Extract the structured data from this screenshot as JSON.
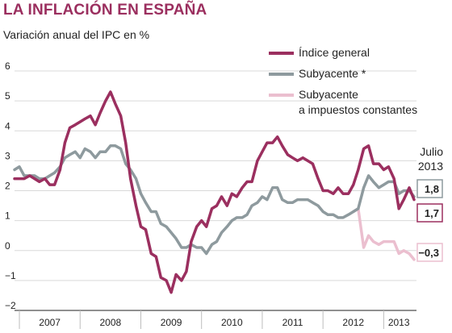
{
  "header": {
    "title": "LA INFLACIÓN EN ESPAÑA",
    "subtitle": "Variación anual del IPC en %"
  },
  "colors": {
    "general": "#9b2f5f",
    "subyacente": "#8e9a9e",
    "constantes": "#ebbfcf",
    "title": "#9b2f5f"
  },
  "annotation": {
    "month": "Julio",
    "year": "2013"
  },
  "chart_data": {
    "type": "line",
    "title": "LA INFLACIÓN EN ESPAÑA",
    "subtitle": "Variación anual del IPC en %",
    "xlabel": "",
    "ylabel": "",
    "ylim": [
      -2,
      6
    ],
    "yticks": [
      "6",
      "5",
      "4",
      "3",
      "2",
      "1",
      "0",
      "-1",
      "-2"
    ],
    "yticks_values": [
      6,
      5,
      4,
      3,
      2,
      1,
      0,
      -1,
      -2
    ],
    "xticks": [
      "2007",
      "2008",
      "2009",
      "2010",
      "2011",
      "2012",
      "2013"
    ],
    "xticks_center_years": [
      2007.5,
      2008.5,
      2009.5,
      2010.5,
      2011.5,
      2012.5,
      2013.25
    ],
    "year_separators": [
      2007,
      2008,
      2009,
      2010,
      2011,
      2012,
      2013
    ],
    "xrange": [
      2006.92,
      2013.54
    ],
    "grid": true,
    "legend_position": "top-right",
    "series": [
      {
        "name": "Índice general",
        "color_key": "general",
        "end_label": "1,7",
        "points": [
          [
            2006.92,
            2.4
          ],
          [
            2007.0,
            2.4
          ],
          [
            2007.08,
            2.4
          ],
          [
            2007.17,
            2.5
          ],
          [
            2007.25,
            2.4
          ],
          [
            2007.33,
            2.3
          ],
          [
            2007.42,
            2.4
          ],
          [
            2007.5,
            2.2
          ],
          [
            2007.58,
            2.2
          ],
          [
            2007.67,
            2.7
          ],
          [
            2007.75,
            3.6
          ],
          [
            2007.83,
            4.1
          ],
          [
            2007.92,
            4.2
          ],
          [
            2008.0,
            4.3
          ],
          [
            2008.08,
            4.4
          ],
          [
            2008.17,
            4.5
          ],
          [
            2008.25,
            4.2
          ],
          [
            2008.33,
            4.6
          ],
          [
            2008.42,
            5.0
          ],
          [
            2008.5,
            5.3
          ],
          [
            2008.58,
            4.9
          ],
          [
            2008.67,
            4.5
          ],
          [
            2008.75,
            3.6
          ],
          [
            2008.83,
            2.4
          ],
          [
            2008.92,
            1.5
          ],
          [
            2009.0,
            0.8
          ],
          [
            2009.08,
            0.7
          ],
          [
            2009.17,
            -0.1
          ],
          [
            2009.25,
            -0.2
          ],
          [
            2009.33,
            -0.9
          ],
          [
            2009.42,
            -1.0
          ],
          [
            2009.5,
            -1.4
          ],
          [
            2009.58,
            -0.8
          ],
          [
            2009.67,
            -1.0
          ],
          [
            2009.75,
            -0.7
          ],
          [
            2009.83,
            0.3
          ],
          [
            2009.92,
            0.8
          ],
          [
            2010.0,
            1.0
          ],
          [
            2010.08,
            0.8
          ],
          [
            2010.17,
            1.4
          ],
          [
            2010.25,
            1.5
          ],
          [
            2010.33,
            1.8
          ],
          [
            2010.42,
            1.5
          ],
          [
            2010.5,
            1.9
          ],
          [
            2010.58,
            1.8
          ],
          [
            2010.67,
            2.1
          ],
          [
            2010.75,
            2.3
          ],
          [
            2010.83,
            2.3
          ],
          [
            2010.92,
            3.0
          ],
          [
            2011.0,
            3.3
          ],
          [
            2011.08,
            3.6
          ],
          [
            2011.17,
            3.6
          ],
          [
            2011.25,
            3.8
          ],
          [
            2011.33,
            3.5
          ],
          [
            2011.42,
            3.2
          ],
          [
            2011.5,
            3.1
          ],
          [
            2011.58,
            3.0
          ],
          [
            2011.67,
            3.1
          ],
          [
            2011.75,
            3.0
          ],
          [
            2011.83,
            2.9
          ],
          [
            2011.92,
            2.4
          ],
          [
            2012.0,
            2.0
          ],
          [
            2012.08,
            2.0
          ],
          [
            2012.17,
            1.9
          ],
          [
            2012.25,
            2.1
          ],
          [
            2012.33,
            1.9
          ],
          [
            2012.42,
            1.9
          ],
          [
            2012.5,
            2.2
          ],
          [
            2012.58,
            2.7
          ],
          [
            2012.67,
            3.4
          ],
          [
            2012.75,
            3.5
          ],
          [
            2012.83,
            2.9
          ],
          [
            2012.92,
            2.9
          ],
          [
            2013.0,
            2.7
          ],
          [
            2013.08,
            2.8
          ],
          [
            2013.17,
            2.4
          ],
          [
            2013.25,
            1.4
          ],
          [
            2013.33,
            1.7
          ],
          [
            2013.42,
            2.1
          ],
          [
            2013.5,
            1.7
          ]
        ]
      },
      {
        "name": "Subyacente *",
        "color_key": "subyacente",
        "end_label": "1,8",
        "points": [
          [
            2006.92,
            2.7
          ],
          [
            2007.0,
            2.8
          ],
          [
            2007.08,
            2.5
          ],
          [
            2007.17,
            2.5
          ],
          [
            2007.25,
            2.5
          ],
          [
            2007.33,
            2.4
          ],
          [
            2007.42,
            2.4
          ],
          [
            2007.5,
            2.5
          ],
          [
            2007.58,
            2.6
          ],
          [
            2007.67,
            2.8
          ],
          [
            2007.75,
            3.1
          ],
          [
            2007.83,
            3.2
          ],
          [
            2007.92,
            3.3
          ],
          [
            2008.0,
            3.1
          ],
          [
            2008.08,
            3.4
          ],
          [
            2008.17,
            3.3
          ],
          [
            2008.25,
            3.1
          ],
          [
            2008.33,
            3.3
          ],
          [
            2008.42,
            3.3
          ],
          [
            2008.5,
            3.5
          ],
          [
            2008.58,
            3.5
          ],
          [
            2008.67,
            3.4
          ],
          [
            2008.75,
            2.9
          ],
          [
            2008.83,
            2.7
          ],
          [
            2008.92,
            2.4
          ],
          [
            2009.0,
            1.9
          ],
          [
            2009.08,
            1.6
          ],
          [
            2009.17,
            1.3
          ],
          [
            2009.25,
            1.3
          ],
          [
            2009.33,
            0.9
          ],
          [
            2009.42,
            0.8
          ],
          [
            2009.5,
            0.6
          ],
          [
            2009.58,
            0.4
          ],
          [
            2009.67,
            0.1
          ],
          [
            2009.75,
            0.1
          ],
          [
            2009.83,
            0.2
          ],
          [
            2009.92,
            0.1
          ],
          [
            2010.0,
            0.1
          ],
          [
            2010.08,
            -0.1
          ],
          [
            2010.17,
            0.2
          ],
          [
            2010.25,
            0.3
          ],
          [
            2010.33,
            0.6
          ],
          [
            2010.42,
            0.8
          ],
          [
            2010.5,
            1.0
          ],
          [
            2010.58,
            1.1
          ],
          [
            2010.67,
            1.1
          ],
          [
            2010.75,
            1.2
          ],
          [
            2010.83,
            1.5
          ],
          [
            2010.92,
            1.6
          ],
          [
            2011.0,
            1.8
          ],
          [
            2011.08,
            1.7
          ],
          [
            2011.17,
            2.1
          ],
          [
            2011.25,
            2.1
          ],
          [
            2011.33,
            1.7
          ],
          [
            2011.42,
            1.6
          ],
          [
            2011.5,
            1.6
          ],
          [
            2011.58,
            1.7
          ],
          [
            2011.67,
            1.7
          ],
          [
            2011.75,
            1.7
          ],
          [
            2011.83,
            1.6
          ],
          [
            2011.92,
            1.5
          ],
          [
            2012.0,
            1.3
          ],
          [
            2012.08,
            1.2
          ],
          [
            2012.17,
            1.2
          ],
          [
            2012.25,
            1.1
          ],
          [
            2012.33,
            1.1
          ],
          [
            2012.42,
            1.2
          ],
          [
            2012.5,
            1.3
          ],
          [
            2012.58,
            1.4
          ],
          [
            2012.67,
            2.1
          ],
          [
            2012.75,
            2.5
          ],
          [
            2012.83,
            2.3
          ],
          [
            2012.92,
            2.1
          ],
          [
            2013.0,
            2.2
          ],
          [
            2013.08,
            2.3
          ],
          [
            2013.17,
            2.3
          ],
          [
            2013.25,
            1.9
          ],
          [
            2013.33,
            2.0
          ],
          [
            2013.42,
            2.0
          ],
          [
            2013.5,
            1.8
          ]
        ]
      },
      {
        "name": "Subyacente a impuestos constantes",
        "legend_lines": [
          "Subyacente",
          "a impuestos constantes"
        ],
        "color_key": "constantes",
        "end_label": "−0,3",
        "points": [
          [
            2012.5,
            1.3
          ],
          [
            2012.58,
            1.4
          ],
          [
            2012.67,
            0.1
          ],
          [
            2012.75,
            0.5
          ],
          [
            2012.83,
            0.3
          ],
          [
            2012.92,
            0.2
          ],
          [
            2013.0,
            0.3
          ],
          [
            2013.08,
            0.3
          ],
          [
            2013.17,
            0.3
          ],
          [
            2013.25,
            -0.1
          ],
          [
            2013.33,
            0.0
          ],
          [
            2013.42,
            -0.1
          ],
          [
            2013.5,
            -0.3
          ]
        ]
      }
    ]
  }
}
